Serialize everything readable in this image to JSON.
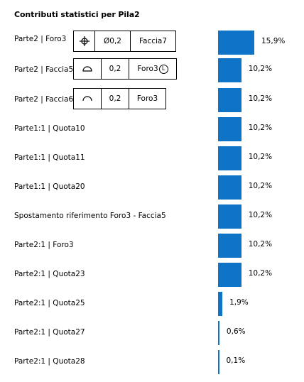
{
  "title": "Contributi statistici per Pila2",
  "bar_color": "#0f73c8",
  "rows": [
    {
      "label": "Parte2 | Foro3",
      "pct": "15,9%",
      "value": 15.9,
      "fcf": {
        "symbol": "position-icon",
        "tolerance": "Ø0,2",
        "datum": "Faccia7"
      }
    },
    {
      "label": "Parte2 | Faccia5",
      "pct": "10,2%",
      "value": 10.2,
      "fcf": {
        "symbol": "profile-of-surface-icon",
        "tolerance": "0,2",
        "datum": "Foro3",
        "modifier": "L"
      }
    },
    {
      "label": "Parte2 | Faccia6",
      "pct": "10,2%",
      "value": 10.2,
      "fcf": {
        "symbol": "profile-of-line-icon",
        "tolerance": "0,2",
        "datum": "Foro3"
      }
    },
    {
      "label": "Parte1:1 | Quota10",
      "pct": "10,2%",
      "value": 10.2
    },
    {
      "label": "Parte1:1 | Quota11",
      "pct": "10,2%",
      "value": 10.2
    },
    {
      "label": "Parte1:1 | Quota20",
      "pct": "10,2%",
      "value": 10.2
    },
    {
      "label": "Spostamento riferimento Foro3 - Faccia5",
      "pct": "10,2%",
      "value": 10.2
    },
    {
      "label": "Parte2:1 | Foro3",
      "pct": "10,2%",
      "value": 10.2
    },
    {
      "label": "Parte2:1 | Quota23",
      "pct": "10,2%",
      "value": 10.2
    },
    {
      "label": "Parte2:1 | Quota25",
      "pct": "1,9%",
      "value": 1.9
    },
    {
      "label": "Parte2:1 | Quota27",
      "pct": "0,6%",
      "value": 0.6
    },
    {
      "label": "Parte2:1 | Quota28",
      "pct": "0,1%",
      "value": 0.1
    }
  ]
}
